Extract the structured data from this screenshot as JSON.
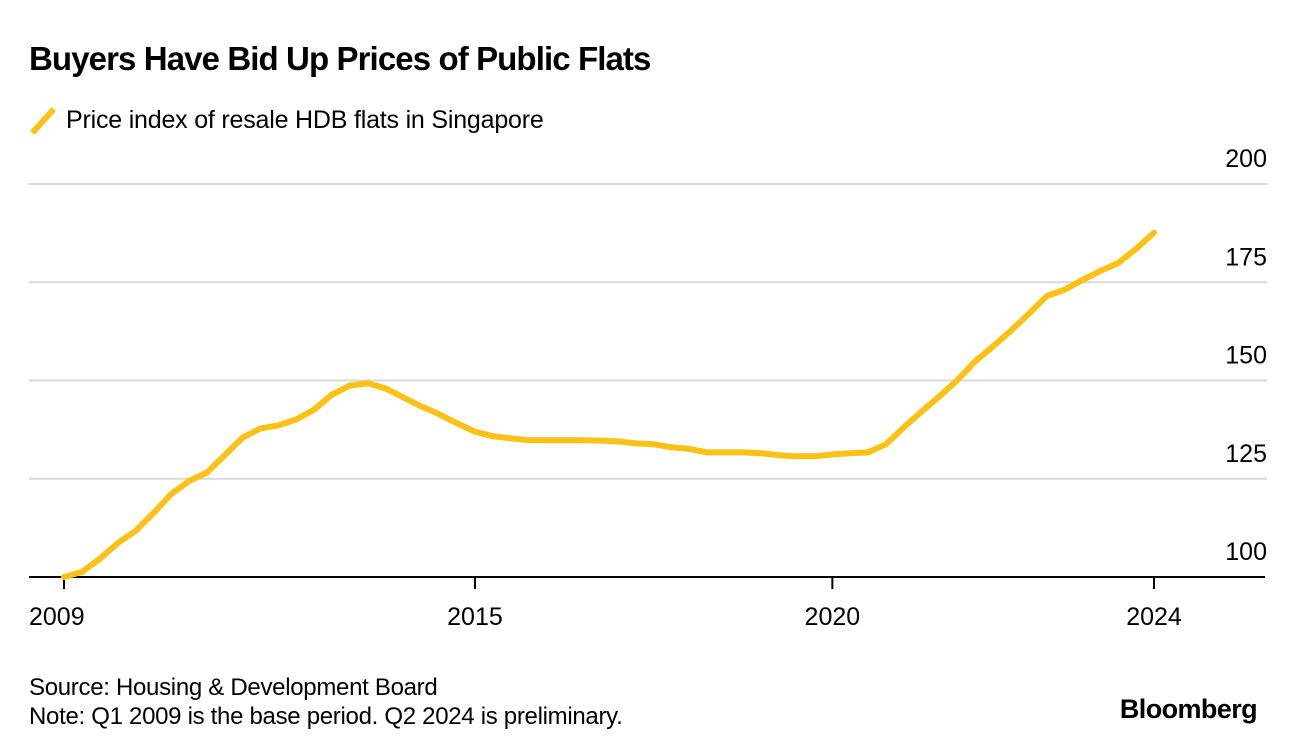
{
  "accent_color": "#fbc115",
  "chart_data": {
    "type": "line",
    "title": "Buyers Have Bid Up Prices of Public Flats",
    "xlabel": "",
    "ylabel": "",
    "ylim": [
      100,
      200
    ],
    "yticks": [
      100,
      125,
      150,
      175,
      200
    ],
    "grid": true,
    "legend_position": "top-left",
    "x": [
      "Q1 2009",
      "Q2 2009",
      "Q3 2009",
      "Q4 2009",
      "Q1 2010",
      "Q2 2010",
      "Q3 2010",
      "Q4 2010",
      "Q1 2011",
      "Q2 2011",
      "Q3 2011",
      "Q4 2011",
      "Q1 2012",
      "Q2 2012",
      "Q3 2012",
      "Q4 2012",
      "Q1 2013",
      "Q2 2013",
      "Q3 2013",
      "Q4 2013",
      "Q1 2014",
      "Q2 2014",
      "Q3 2014",
      "Q4 2014",
      "Q1 2015",
      "Q2 2015",
      "Q3 2015",
      "Q4 2015",
      "Q1 2016",
      "Q2 2016",
      "Q3 2016",
      "Q4 2016",
      "Q1 2017",
      "Q2 2017",
      "Q3 2017",
      "Q4 2017",
      "Q1 2018",
      "Q2 2018",
      "Q3 2018",
      "Q4 2018",
      "Q1 2019",
      "Q2 2019",
      "Q3 2019",
      "Q4 2019",
      "Q1 2020",
      "Q2 2020",
      "Q3 2020",
      "Q4 2020",
      "Q1 2021",
      "Q2 2021",
      "Q3 2021",
      "Q4 2021",
      "Q1 2022",
      "Q2 2022",
      "Q3 2022",
      "Q4 2022",
      "Q1 2023",
      "Q2 2023",
      "Q3 2023",
      "Q4 2023",
      "Q1 2024",
      "Q2 2024"
    ],
    "xticks": [
      {
        "label": "2009",
        "at_index": 0
      },
      {
        "label": "2015",
        "at_index": 23
      },
      {
        "label": "2020",
        "at_index": 43
      },
      {
        "label": "2024",
        "at_index": 61
      }
    ],
    "series": [
      {
        "name": "Price index of resale HDB flats in Singapore",
        "color": "#fbc115",
        "values": [
          100,
          101.3,
          104.6,
          108.6,
          111.7,
          116.2,
          121.1,
          124.4,
          126.6,
          131.0,
          135.5,
          137.8,
          138.6,
          140.1,
          142.6,
          146.4,
          148.7,
          149.3,
          148.0,
          145.7,
          143.4,
          141.4,
          139.1,
          137.0,
          135.8,
          135.3,
          134.8,
          134.8,
          134.8,
          134.8,
          134.7,
          134.5,
          134.0,
          133.8,
          133.0,
          132.6,
          131.7,
          131.7,
          131.7,
          131.5,
          131.0,
          130.7,
          130.7,
          131.2,
          131.5,
          131.7,
          133.8,
          138.1,
          142.1,
          146.0,
          150.1,
          154.9,
          158.7,
          162.7,
          167.0,
          171.5,
          173.1,
          175.6,
          177.9,
          179.9,
          183.5,
          187.6
        ]
      }
    ]
  },
  "legend": {
    "label": "Price index of resale HDB flats in Singapore"
  },
  "footer": {
    "source": "Source: Housing & Development Board",
    "note": "Note: Q1 2009 is the base period. Q2 2024 is preliminary."
  },
  "brand": "Bloomberg"
}
